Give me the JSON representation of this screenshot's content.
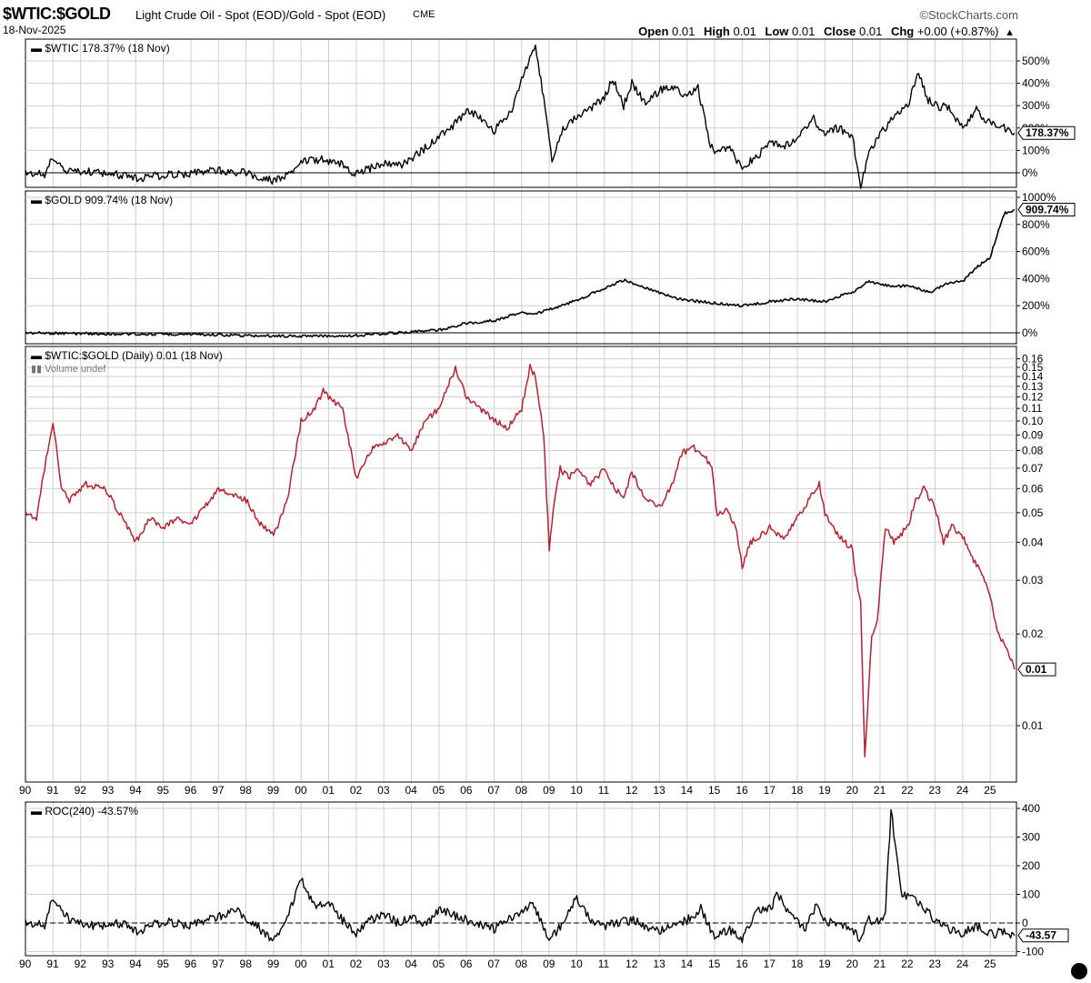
{
  "header": {
    "symbol": "$WTIC:$GOLD",
    "description": "Light Crude Oil - Spot (EOD)/Gold - Spot (EOD)",
    "exchange": "CME",
    "date": "18-Nov-2025",
    "brand": "©StockCharts.com",
    "open_label": "Open",
    "open": "0.01",
    "high_label": "High",
    "high": "0.01",
    "low_label": "Low",
    "low": "0.01",
    "close_label": "Close",
    "close": "0.01",
    "chg_label": "Chg",
    "chg": "+0.00 (+0.87%)",
    "chg_icon": "up-triangle-icon"
  },
  "colors": {
    "price_line": "#000000",
    "ratio_line": "#b5222f",
    "grid": "#d0d0d0",
    "frame": "#000000"
  },
  "chart_data": [
    {
      "type": "line",
      "panel": "wtic",
      "title": "$WTIC 178.37% (18 Nov)",
      "value_label": "178.37%",
      "yticks": [
        "500%",
        "400%",
        "300%",
        "200%",
        "100%",
        "0%"
      ],
      "ylim": [
        -30,
        600
      ],
      "x": [
        1990.0,
        1990.7,
        1991.0,
        1991.5,
        1992.5,
        1993.5,
        1994.0,
        1995.0,
        1996.0,
        1997.0,
        1998.0,
        1998.9,
        1999.5,
        2000.0,
        2000.7,
        2001.5,
        2001.9,
        2002.5,
        2003.0,
        2003.5,
        2004.0,
        2004.5,
        2005.0,
        2005.6,
        2006.0,
        2006.5,
        2007.0,
        2007.6,
        2008.0,
        2008.5,
        2008.9,
        2009.1,
        2009.5,
        2010.0,
        2010.5,
        2011.0,
        2011.3,
        2011.7,
        2012.0,
        2012.5,
        2013.0,
        2013.5,
        2014.0,
        2014.4,
        2014.8,
        2015.0,
        2015.5,
        2016.0,
        2016.5,
        2017.0,
        2017.5,
        2018.0,
        2018.6,
        2018.9,
        2019.5,
        2020.0,
        2020.3,
        2020.6,
        2021.0,
        2021.5,
        2022.0,
        2022.4,
        2022.7,
        2023.0,
        2023.5,
        2024.0,
        2024.5,
        2025.0,
        2025.5,
        2025.88
      ],
      "y": [
        0,
        -10,
        70,
        10,
        5,
        -10,
        -25,
        -10,
        -5,
        10,
        0,
        -35,
        -10,
        50,
        60,
        40,
        0,
        20,
        40,
        30,
        60,
        110,
        160,
        220,
        280,
        250,
        190,
        270,
        420,
        570,
        250,
        50,
        200,
        250,
        290,
        330,
        420,
        300,
        400,
        310,
        370,
        380,
        340,
        380,
        140,
        90,
        120,
        20,
        70,
        130,
        120,
        150,
        240,
        180,
        200,
        160,
        -60,
        90,
        170,
        250,
        300,
        450,
        330,
        300,
        290,
        200,
        280,
        220,
        200,
        178
      ]
    },
    {
      "type": "line",
      "panel": "gold",
      "title": "$GOLD 909.74% (18 Nov)",
      "value_label": "909.74%",
      "yticks": [
        "1000%",
        "800%",
        "600%",
        "400%",
        "200%",
        "0%"
      ],
      "ylim": [
        -20,
        1000
      ],
      "x": [
        1990.0,
        1992.0,
        1994.0,
        1996.0,
        1998.0,
        2000.0,
        2002.0,
        2003.0,
        2004.0,
        2005.0,
        2006.0,
        2007.0,
        2008.0,
        2008.5,
        2009.0,
        2010.0,
        2011.0,
        2011.7,
        2012.5,
        2013.5,
        2014.0,
        2015.0,
        2016.0,
        2017.0,
        2018.0,
        2019.0,
        2019.5,
        2020.0,
        2020.6,
        2021.0,
        2021.5,
        2022.0,
        2022.8,
        2023.5,
        2024.0,
        2024.5,
        2025.0,
        2025.5,
        2025.88
      ],
      "y": [
        0,
        -5,
        -10,
        -10,
        -20,
        -25,
        -20,
        -5,
        5,
        20,
        70,
        90,
        150,
        140,
        170,
        240,
        330,
        390,
        330,
        260,
        240,
        220,
        200,
        230,
        250,
        230,
        270,
        300,
        380,
        360,
        340,
        350,
        300,
        370,
        380,
        480,
        560,
        880,
        909
      ]
    },
    {
      "type": "line",
      "panel": "ratio",
      "title": "$WTIC:$GOLD (Daily) 0.01 (18 Nov)",
      "subtitle": "Volume undef",
      "value_label": "0.01",
      "scale": "log",
      "yticks": [
        "0.16",
        "0.15",
        "0.14",
        "0.13",
        "0.12",
        "0.11",
        "0.10",
        "0.09",
        "0.08",
        "0.07",
        "0.06",
        "0.05",
        "0.04",
        "0.03",
        "0.02",
        "0.01"
      ],
      "ylim": [
        0.0075,
        0.16
      ],
      "x": [
        1990.0,
        1990.4,
        1990.8,
        1991.0,
        1991.3,
        1991.6,
        1992.2,
        1992.9,
        1993.5,
        1994.0,
        1994.5,
        1995.0,
        1995.5,
        1996.0,
        1996.5,
        1997.0,
        1997.5,
        1998.0,
        1998.5,
        1999.0,
        1999.5,
        2000.0,
        2000.5,
        2000.8,
        2001.5,
        2002.0,
        2002.5,
        2003.0,
        2003.5,
        2004.0,
        2004.5,
        2005.0,
        2005.6,
        2006.0,
        2006.5,
        2007.0,
        2007.5,
        2008.0,
        2008.3,
        2008.5,
        2008.8,
        2009.0,
        2009.2,
        2009.4,
        2009.7,
        2010.0,
        2010.5,
        2011.0,
        2011.3,
        2011.7,
        2012.0,
        2012.5,
        2013.0,
        2013.4,
        2013.8,
        2014.2,
        2014.6,
        2014.9,
        2015.1,
        2015.4,
        2015.8,
        2016.0,
        2016.3,
        2016.7,
        2017.0,
        2017.5,
        2018.0,
        2018.4,
        2018.8,
        2019.0,
        2019.5,
        2020.0,
        2020.1,
        2020.3,
        2020.45,
        2020.7,
        2020.9,
        2021.2,
        2021.5,
        2022.0,
        2022.3,
        2022.6,
        2023.0,
        2023.3,
        2023.6,
        2024.0,
        2024.4,
        2024.8,
        2025.0,
        2025.3,
        2025.6,
        2025.88
      ],
      "y": [
        0.05,
        0.048,
        0.08,
        0.1,
        0.06,
        0.055,
        0.062,
        0.06,
        0.048,
        0.04,
        0.048,
        0.045,
        0.048,
        0.046,
        0.052,
        0.06,
        0.058,
        0.055,
        0.046,
        0.042,
        0.055,
        0.1,
        0.11,
        0.125,
        0.11,
        0.065,
        0.08,
        0.085,
        0.09,
        0.08,
        0.1,
        0.11,
        0.15,
        0.12,
        0.11,
        0.1,
        0.095,
        0.11,
        0.15,
        0.14,
        0.09,
        0.038,
        0.055,
        0.07,
        0.065,
        0.07,
        0.062,
        0.07,
        0.062,
        0.055,
        0.068,
        0.055,
        0.052,
        0.06,
        0.078,
        0.082,
        0.078,
        0.07,
        0.048,
        0.052,
        0.044,
        0.033,
        0.04,
        0.042,
        0.045,
        0.041,
        0.048,
        0.055,
        0.062,
        0.05,
        0.042,
        0.038,
        0.032,
        0.025,
        0.0078,
        0.02,
        0.022,
        0.045,
        0.04,
        0.045,
        0.055,
        0.06,
        0.052,
        0.04,
        0.045,
        0.042,
        0.035,
        0.03,
        0.026,
        0.02,
        0.018,
        0.0153
      ]
    },
    {
      "type": "line",
      "panel": "roc",
      "title": "ROC(240) -43.57%",
      "value_label": "-43.57",
      "yticks": [
        "400",
        "300",
        "200",
        "100",
        "0",
        "-100"
      ],
      "ylim": [
        -100,
        400
      ],
      "x": [
        1990.0,
        1990.7,
        1991.0,
        1991.6,
        1992.5,
        1993.5,
        1994.0,
        1995.0,
        1996.0,
        1997.0,
        1997.6,
        1998.5,
        1999.0,
        1999.5,
        2000.0,
        2000.5,
        2001.0,
        2001.5,
        2002.0,
        2002.5,
        2003.0,
        2003.5,
        2004.0,
        2004.5,
        2005.0,
        2006.0,
        2007.0,
        2007.6,
        2008.0,
        2008.4,
        2009.0,
        2009.5,
        2010.0,
        2010.5,
        2011.0,
        2012.0,
        2013.0,
        2014.0,
        2014.5,
        2015.0,
        2015.5,
        2016.0,
        2016.5,
        2017.0,
        2017.3,
        2017.7,
        2018.3,
        2018.7,
        2019.0,
        2019.5,
        2020.0,
        2020.3,
        2020.6,
        2021.0,
        2021.2,
        2021.4,
        2021.8,
        2022.2,
        2022.7,
        2023.0,
        2023.5,
        2024.0,
        2024.5,
        2025.0,
        2025.5,
        2025.88
      ],
      "y": [
        0,
        -10,
        90,
        10,
        -10,
        0,
        -30,
        5,
        -10,
        20,
        50,
        -20,
        -60,
        20,
        150,
        60,
        80,
        10,
        -40,
        10,
        30,
        0,
        20,
        -10,
        50,
        10,
        -20,
        20,
        40,
        70,
        -60,
        0,
        90,
        10,
        -10,
        10,
        -30,
        10,
        50,
        -50,
        -20,
        -60,
        40,
        50,
        100,
        40,
        -20,
        70,
        10,
        -10,
        -20,
        -60,
        10,
        0,
        50,
        390,
        100,
        90,
        40,
        10,
        -20,
        -40,
        -10,
        -40,
        -30,
        -43.57
      ]
    },
    {
      "type": "axis",
      "panel": "years",
      "tick_labels": [
        "90",
        "91",
        "92",
        "93",
        "94",
        "95",
        "96",
        "97",
        "98",
        "99",
        "00",
        "01",
        "02",
        "03",
        "04",
        "05",
        "06",
        "07",
        "08",
        "09",
        "10",
        "11",
        "12",
        "13",
        "14",
        "15",
        "16",
        "17",
        "18",
        "19",
        "20",
        "21",
        "22",
        "23",
        "24",
        "25"
      ]
    }
  ]
}
